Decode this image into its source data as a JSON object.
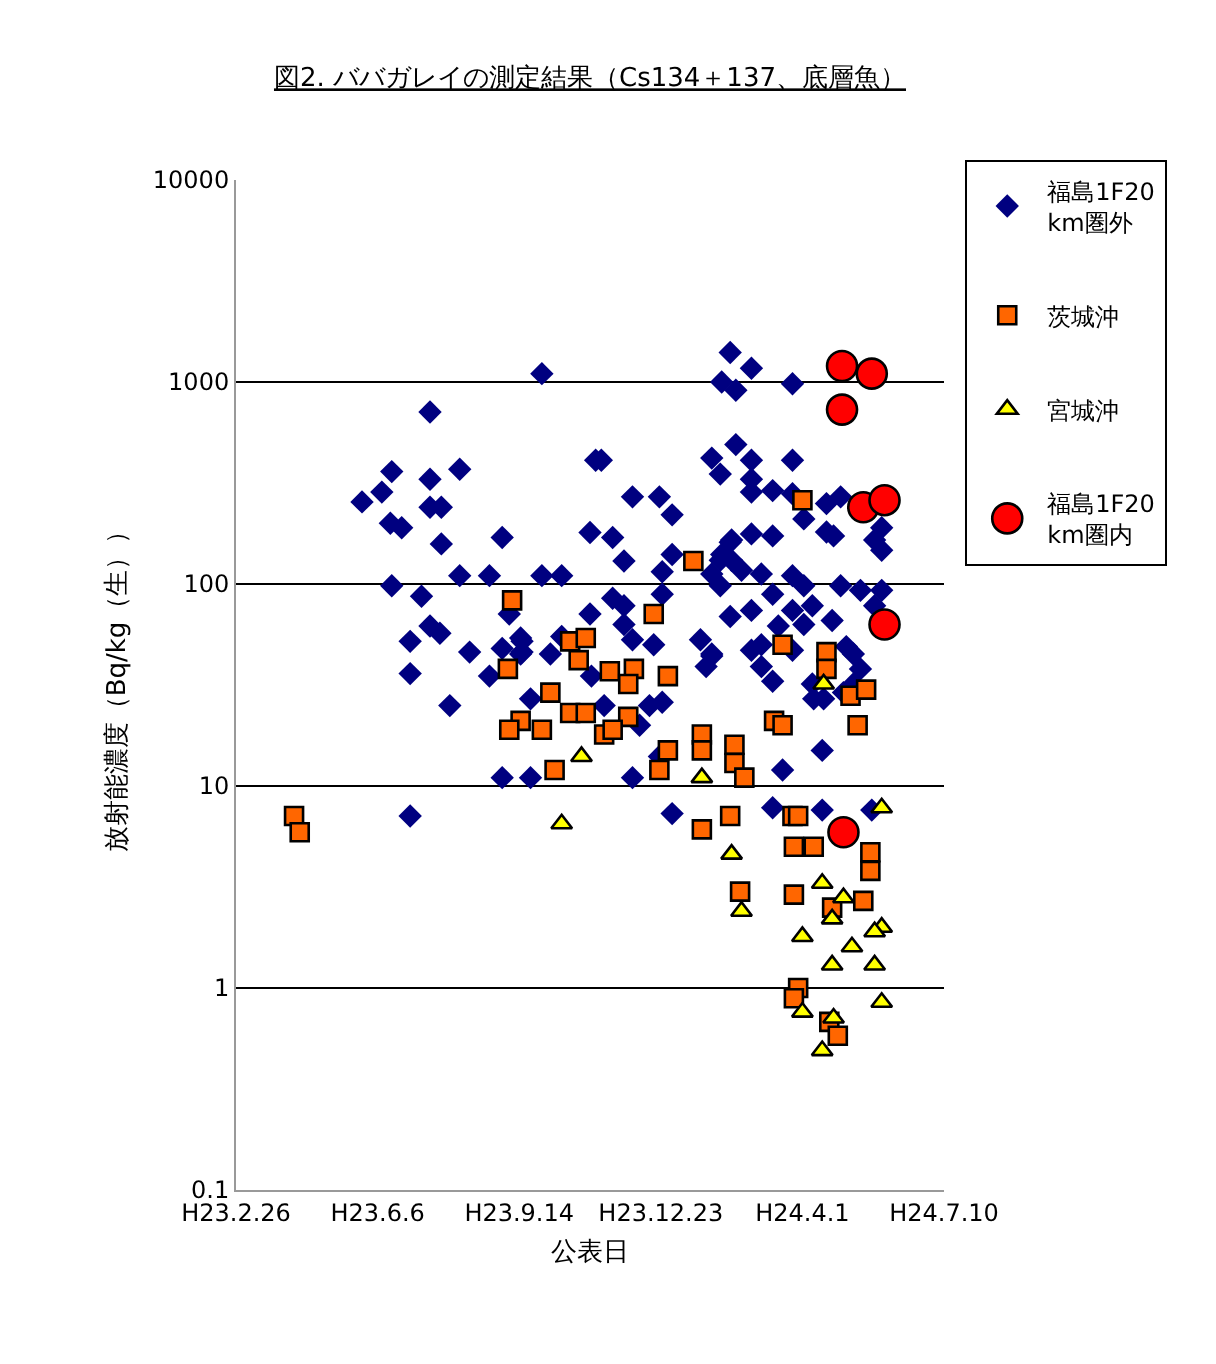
{
  "chart_data": {
    "type": "scatter",
    "title": "図2. ババガレイの測定結果（Cs134＋137、底層魚）",
    "xlabel": "公表日",
    "ylabel": "放射能濃度（Bq/kg（生））",
    "log": "y",
    "grid": "y",
    "legend": "right",
    "xlim": [
      "2011-02-26",
      "2012-07-10"
    ],
    "xticks": [
      {
        "value": "2011-02-26",
        "label": "H23.2.26"
      },
      {
        "value": "2011-06-06",
        "label": "H23.6.6"
      },
      {
        "value": "2011-09-14",
        "label": "H23.9.14"
      },
      {
        "value": "2011-12-23",
        "label": "H23.12.23"
      },
      {
        "value": "2012-04-01",
        "label": "H24.4.1"
      },
      {
        "value": "2012-07-10",
        "label": "H24.7.10"
      }
    ],
    "ylim": [
      0.1,
      10000
    ],
    "yticks": [
      0.1,
      1,
      10,
      100,
      1000,
      10000
    ],
    "series": [
      {
        "name": "福島1F20km圏外",
        "color": "#000080",
        "marker": "diamond",
        "x": [
          "2011-09-30",
          "2011-07-13",
          "2011-06-16",
          "2011-08-03",
          "2011-07-13",
          "2011-05-26",
          "2011-06-09",
          "2011-07-13",
          "2011-07-21",
          "2011-06-15",
          "2011-06-23",
          "2011-07-21",
          "2011-09-02",
          "2011-11-07",
          "2011-11-03",
          "2011-06-16",
          "2011-08-03",
          "2011-08-24",
          "2011-09-30",
          "2011-10-14",
          "2011-07-07",
          "2011-07-13",
          "2011-07-20",
          "2011-06-29",
          "2011-08-10",
          "2011-09-02",
          "2011-09-16",
          "2011-09-16",
          "2011-10-06",
          "2011-06-29",
          "2011-08-24",
          "2011-09-22",
          "2011-07-27",
          "2011-09-02",
          "2011-09-22",
          "2011-06-29",
          "2011-09-07",
          "2011-11-03",
          "2011-10-14",
          "2012-02-10",
          "2012-02-04",
          "2012-02-14",
          "2011-11-11",
          "2011-12-03",
          "2011-12-22",
          "2011-12-31",
          "2012-01-28",
          "2012-02-03",
          "2012-02-14",
          "2011-11-19",
          "2011-11-27",
          "2011-12-31",
          "2011-12-24",
          "2012-02-10",
          "2012-02-03",
          "2012-02-03",
          "2011-11-19",
          "2011-11-27",
          "2011-11-27",
          "2011-12-24",
          "2012-02-10",
          "2011-09-15",
          "2011-09-15",
          "2011-12-03",
          "2011-12-18",
          "2012-01-20",
          "2012-01-28",
          "2012-01-24",
          "2011-11-04",
          "2011-11-13",
          "2011-12-15",
          "2011-12-24",
          "2011-12-08",
          "2011-12-03",
          "2011-12-31",
          "2011-12-22",
          "2012-02-25",
          "2012-03-25",
          "2012-02-25",
          "2012-02-25",
          "2012-03-25",
          "2012-02-25",
          "2012-03-11",
          "2012-03-25",
          "2012-04-28",
          "2012-04-18",
          "2012-04-02",
          "2012-02-25",
          "2012-03-11",
          "2012-04-18",
          "2012-04-23",
          "2012-05-22",
          "2012-05-27",
          "2012-05-27",
          "2012-02-11",
          "2012-02-04",
          "2012-02-11",
          "2012-02-18",
          "2012-03-03",
          "2012-01-28",
          "2012-03-25",
          "2012-04-02",
          "2012-04-28",
          "2012-05-12",
          "2012-05-27",
          "2012-05-22",
          "2012-03-11",
          "2012-02-25",
          "2012-03-25",
          "2012-04-08",
          "2012-04-22",
          "2012-04-02",
          "2012-03-15",
          "2012-01-28",
          "2012-02-25",
          "2012-03-03",
          "2012-03-25",
          "2012-05-02",
          "2012-05-07",
          "2012-03-11",
          "2012-03-03",
          "2012-04-08",
          "2012-04-16",
          "2012-04-09",
          "2012-04-30",
          "2012-05-12",
          "2012-05-07",
          "2012-04-15",
          "2012-03-18",
          "2012-03-11",
          "2012-04-15",
          "2012-05-20"
        ],
        "values": [
          1100,
          710,
          360,
          370,
          330,
          255,
          285,
          240,
          240,
          200,
          190,
          158,
          170,
          410,
          180,
          98,
          110,
          110,
          110,
          110,
          87,
          62,
          57,
          52,
          46,
          48,
          52,
          46,
          45,
          36,
          35,
          27,
          25,
          11,
          11,
          7.1,
          71,
          71,
          55,
          1400,
          1000,
          910,
          410,
          270,
          270,
          220,
          420,
          350,
          490,
          170,
          130,
          140,
          115,
          161,
          131,
          98,
          85,
          78,
          63,
          89,
          69,
          54,
          45,
          53,
          50,
          53,
          44,
          39,
          35,
          25,
          25,
          26,
          20,
          11,
          7.3,
          14,
          1170,
          980,
          410,
          330,
          410,
          285,
          290,
          280,
          270,
          250,
          210,
          177,
          173,
          181,
          173,
          165,
          190,
          147,
          165,
          140,
          131,
          117,
          112,
          112,
          110,
          98,
          98,
          93,
          93,
          78,
          89,
          74,
          74,
          78,
          66,
          63,
          62,
          45,
          47,
          50,
          47,
          49,
          45,
          33,
          39,
          32,
          27,
          27,
          29,
          38,
          32,
          15,
          12,
          7.8,
          7.6,
          7.6
        ]
      },
      {
        "name": "茨城沖",
        "color": "#ff6600",
        "marker": "square",
        "x": [
          "2011-04-08",
          "2011-04-12",
          "2011-09-09",
          "2011-09-06",
          "2011-10-06",
          "2011-10-26",
          "2011-10-20",
          "2011-10-31",
          "2011-09-15",
          "2011-09-07",
          "2011-09-30",
          "2011-10-20",
          "2011-10-31",
          "2011-10-09",
          "2012-01-15",
          "2011-12-18",
          "2011-11-17",
          "2011-12-04",
          "2011-11-30",
          "2011-12-28",
          "2011-11-30",
          "2011-11-13",
          "2011-11-19",
          "2011-12-28",
          "2011-12-22",
          "2012-01-21",
          "2012-01-21",
          "2012-02-13",
          "2012-02-13",
          "2012-02-10",
          "2012-01-21",
          "2012-04-01",
          "2012-03-18",
          "2012-04-18",
          "2012-04-18",
          "2012-05-05",
          "2012-05-16",
          "2012-05-10",
          "2012-03-12",
          "2012-03-18",
          "2012-02-20",
          "2012-03-25",
          "2012-03-29",
          "2012-03-26",
          "2012-04-09",
          "2012-02-17",
          "2012-03-26",
          "2012-04-22",
          "2012-05-14",
          "2012-05-19",
          "2012-05-19",
          "2012-03-29",
          "2012-03-26",
          "2012-04-20",
          "2012-04-26"
        ],
        "values": [
          7.1,
          5.9,
          83,
          38,
          29,
          42,
          52,
          54,
          21,
          19,
          19,
          23,
          23,
          12,
          130,
          71,
          37,
          38,
          32,
          35,
          22,
          18,
          19,
          15,
          12,
          18,
          15,
          16,
          13,
          7.1,
          6.1,
          260,
          50,
          46,
          38,
          28,
          30,
          20,
          21,
          20,
          11,
          7.1,
          7.1,
          5.0,
          5.0,
          3.0,
          2.9,
          2.5,
          2.7,
          4.7,
          3.8,
          1.0,
          0.89,
          0.68,
          0.58
        ]
      },
      {
        "name": "宮城沖",
        "color": "#ffff00",
        "marker": "triangle",
        "x": [
          "2011-10-28",
          "2011-10-14",
          "2012-01-21",
          "2012-04-16",
          "2012-05-27",
          "2012-02-11",
          "2012-02-18",
          "2012-04-15",
          "2012-04-30",
          "2012-04-22",
          "2012-04-01",
          "2012-05-06",
          "2012-05-27",
          "2012-05-22",
          "2012-04-22",
          "2012-05-22",
          "2012-05-27",
          "2012-04-01",
          "2012-04-23",
          "2012-04-15"
        ],
        "values": [
          14,
          6.5,
          11,
          32,
          7.8,
          4.6,
          2.4,
          3.3,
          2.8,
          2.2,
          1.8,
          1.6,
          2.0,
          1.9,
          1.3,
          1.3,
          0.85,
          0.76,
          0.71,
          0.49
        ]
      },
      {
        "name": "福島1F20km圏内",
        "color": "#ff0000",
        "marker": "circle",
        "x": [
          "2012-04-29",
          "2012-05-20",
          "2012-04-29",
          "2012-05-14",
          "2012-05-29",
          "2012-05-29",
          "2012-04-30"
        ],
        "values": [
          1200,
          1100,
          730,
          240,
          260,
          63,
          5.9
        ]
      }
    ]
  }
}
